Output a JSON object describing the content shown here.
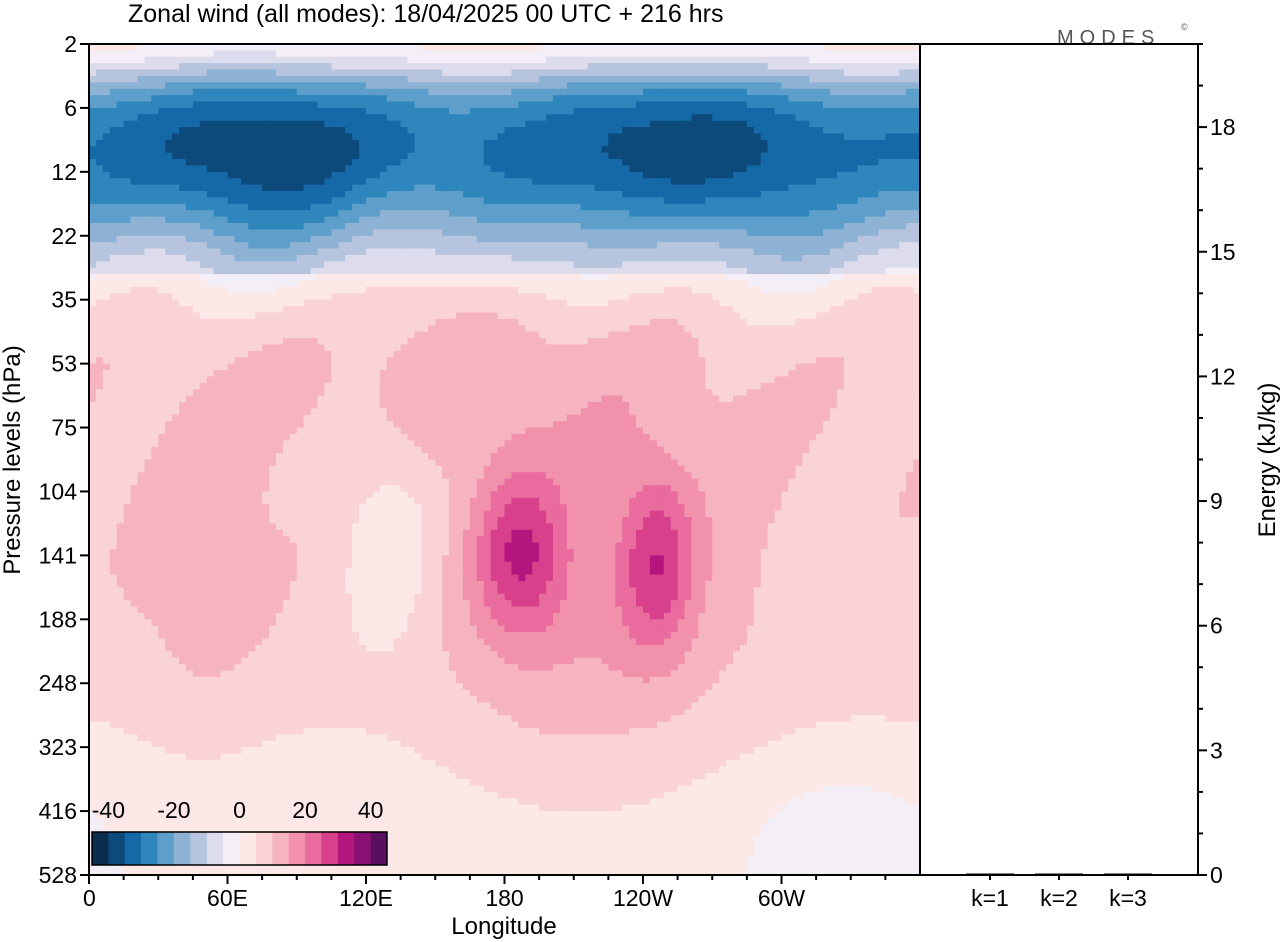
{
  "chart_data": {
    "type": "heatmap",
    "title": "Zonal wind (all modes):  18/04/2025  00 UTC  + 216 hrs",
    "watermark": "MODES",
    "watermark_mark": "©",
    "xlabel": "Longitude",
    "ylabel": "Pressure levels (hPa)",
    "y2label": "Energy (kJ/kg)",
    "x_ticks": [
      "0",
      "60E",
      "120E",
      "180",
      "120W",
      "60W"
    ],
    "x_tick_lon": [
      0,
      60,
      120,
      180,
      240,
      300
    ],
    "xlim": [
      0,
      360
    ],
    "y_levels": [
      2,
      6,
      12,
      22,
      35,
      53,
      75,
      104,
      141,
      188,
      248,
      323,
      416,
      528
    ],
    "y_direction": "increasing downward",
    "y2_ticks": [
      0,
      3,
      6,
      9,
      12,
      15,
      18
    ],
    "y2lim": [
      0,
      20
    ],
    "energy_categories": [
      "k=1",
      "k=2",
      "k=3"
    ],
    "energy_values": [
      0.01,
      0.005,
      0.005
    ],
    "colorbar": {
      "labels": [
        "-40",
        "-20",
        "0",
        "20",
        "40"
      ],
      "label_values": [
        -40,
        -20,
        0,
        20,
        40
      ],
      "range": [
        -45,
        45
      ],
      "colors": [
        "#0b2d4e",
        "#0d4a7c",
        "#1469a6",
        "#2f86bd",
        "#5d9fca",
        "#8eb2d4",
        "#b6c4de",
        "#dcdcec",
        "#f4eff6",
        "#fde8e8",
        "#fad3d6",
        "#f6b3c0",
        "#f291ac",
        "#ea6b9d",
        "#d8408c",
        "#b4157e",
        "#881072",
        "#5a0e60"
      ]
    },
    "field_description": "Upper levels (2-30 hPa): strong easterlies near -30 to -40 m/s around 6-12 hPa; weak westerlies near 2 hPa. Below 35 hPa: weak westerlies (5-15 m/s) with maxima ~25 m/s near 141 hPa at 190E and 245E."
  }
}
